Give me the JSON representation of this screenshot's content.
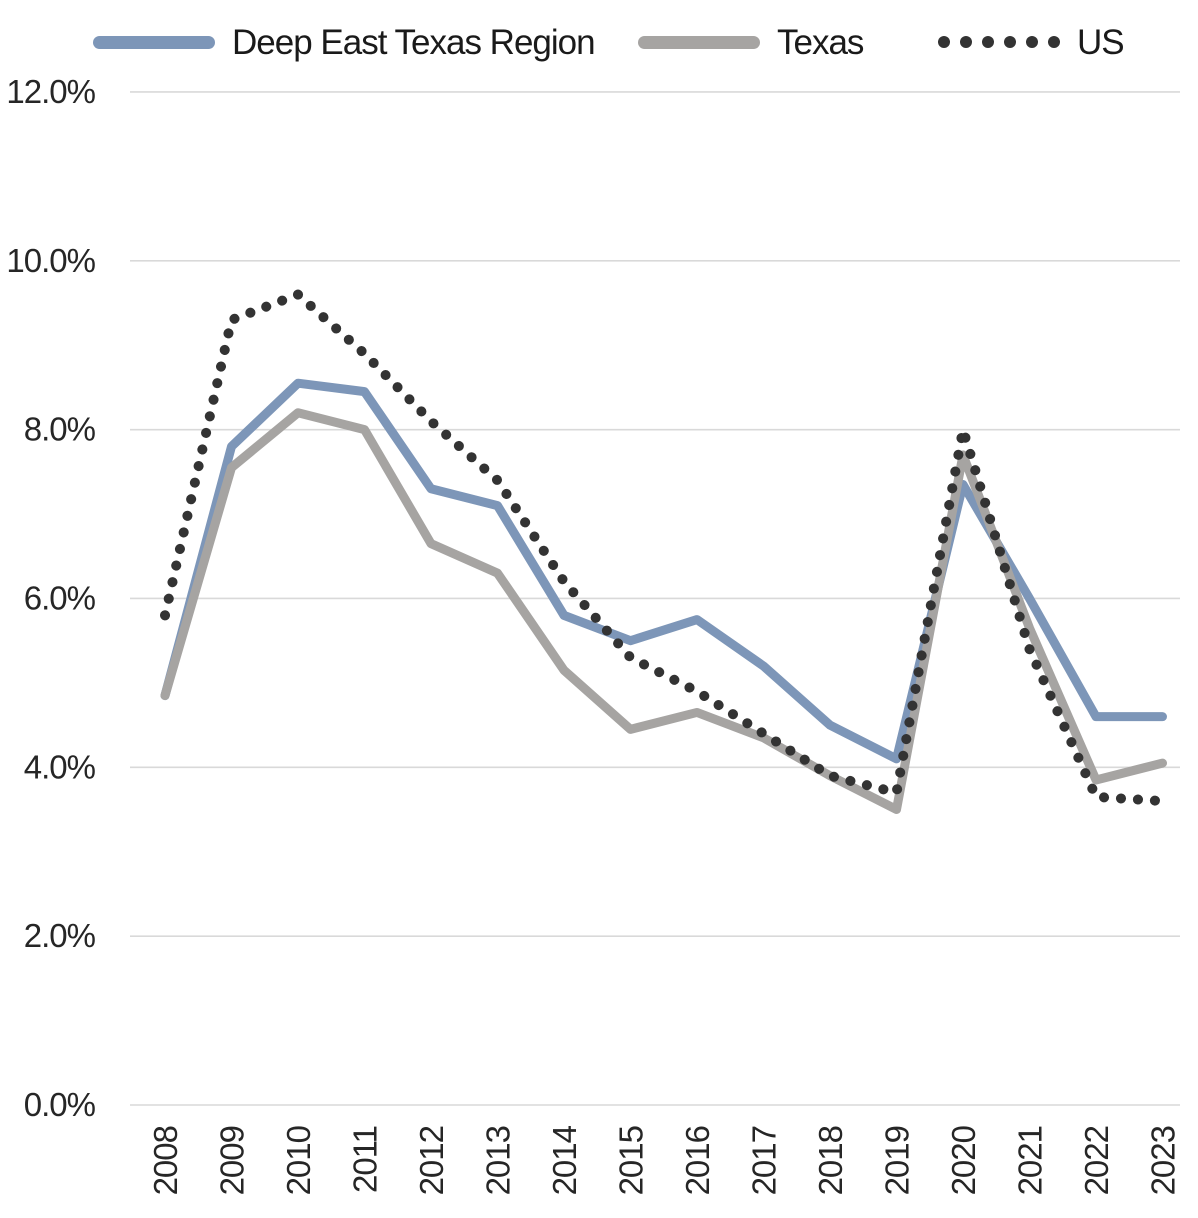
{
  "chart_data": {
    "type": "line",
    "title": "",
    "xlabel": "",
    "ylabel": "",
    "unit": "percent",
    "grid": true,
    "legend_position": "top",
    "ylim": [
      0,
      12
    ],
    "x": [
      "2008",
      "2009",
      "2010",
      "2011",
      "2012",
      "2013",
      "2014",
      "2015",
      "2016",
      "2017",
      "2018",
      "2019",
      "2020",
      "2021",
      "2022",
      "2023"
    ],
    "y_ticks": [
      {
        "value": 12,
        "label": "12.0%"
      },
      {
        "value": 10,
        "label": "10.0%"
      },
      {
        "value": 8,
        "label": "8.0%"
      },
      {
        "value": 6,
        "label": "6.0%"
      },
      {
        "value": 4,
        "label": "4.0%"
      },
      {
        "value": 2,
        "label": "2.0%"
      },
      {
        "value": 0,
        "label": "0.0%"
      }
    ],
    "series": [
      {
        "name": "Deep East Texas Region",
        "style": "solid",
        "color": "#7d96b8",
        "values": [
          4.85,
          7.8,
          8.55,
          8.45,
          7.3,
          7.1,
          5.8,
          5.5,
          5.75,
          5.2,
          4.5,
          4.1,
          7.35,
          6.0,
          4.6,
          4.6
        ]
      },
      {
        "name": "Texas",
        "style": "solid",
        "color": "#a6a4a2",
        "values": [
          4.85,
          7.55,
          8.2,
          8.0,
          6.65,
          6.3,
          5.15,
          4.45,
          4.65,
          4.35,
          3.9,
          3.5,
          7.7,
          5.65,
          3.85,
          4.05
        ]
      },
      {
        "name": "US",
        "style": "dotted",
        "color": "#333333",
        "values": [
          5.8,
          9.3,
          9.6,
          8.9,
          8.1,
          7.4,
          6.2,
          5.3,
          4.9,
          4.4,
          3.9,
          3.7,
          8.0,
          5.4,
          3.65,
          3.6
        ]
      }
    ],
    "colors": {
      "gridline": "#d9d9d9",
      "axis_text": "#262626"
    }
  }
}
